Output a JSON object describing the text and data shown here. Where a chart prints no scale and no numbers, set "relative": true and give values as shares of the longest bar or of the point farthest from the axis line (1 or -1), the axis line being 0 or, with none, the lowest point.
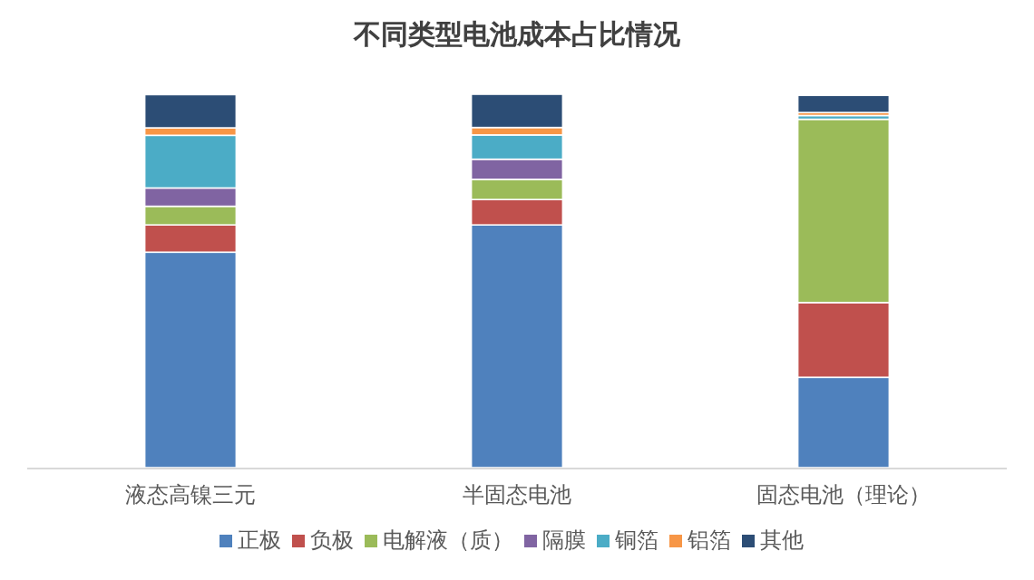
{
  "chart_data": {
    "type": "bar",
    "title": "不同类型电池成本占比情况",
    "stacked": true,
    "relative": true,
    "legend": "bottom",
    "categories": [
      "液态高镍三元",
      "半固态电池",
      "固态电池（理论）"
    ],
    "series": [
      {
        "name": "正极",
        "color": "#4f81bd",
        "values": [
          0.577,
          0.65,
          0.242
        ]
      },
      {
        "name": "负极",
        "color": "#c0504d",
        "values": [
          0.073,
          0.068,
          0.2
        ]
      },
      {
        "name": "电解液（质）",
        "color": "#9bbb59",
        "values": [
          0.05,
          0.054,
          0.491
        ]
      },
      {
        "name": "隔膜",
        "color": "#8064a2",
        "values": [
          0.049,
          0.054,
          null
        ]
      },
      {
        "name": "铜箔",
        "color": "#4bacc6",
        "values": [
          0.141,
          0.065,
          0.01
        ]
      },
      {
        "name": "铝箔",
        "color": "#f79646",
        "values": [
          0.02,
          0.02,
          0.008
        ]
      },
      {
        "name": "其他",
        "color": "#2c4d75",
        "values": [
          0.089,
          0.089,
          0.046
        ]
      }
    ]
  }
}
